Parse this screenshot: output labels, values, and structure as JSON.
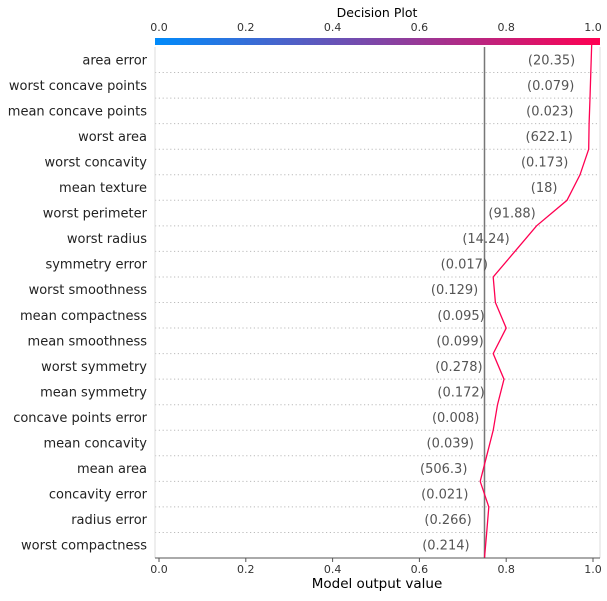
{
  "chart_data": {
    "type": "line",
    "title": "Decision Plot",
    "xlabel": "Model output value",
    "xlim": [
      0.0,
      1.0
    ],
    "xticks": [
      "0.0",
      "0.2",
      "0.4",
      "0.6",
      "0.8",
      "1.0"
    ],
    "base_value": 0.75,
    "colorbar": {
      "range": [
        0.0,
        1.0
      ],
      "colors": [
        "#008bfb",
        "#ff0052"
      ]
    },
    "grid": "dotted horizontal lines per feature",
    "features": [
      "area error",
      "worst concave points",
      "mean concave points",
      "worst area",
      "worst concavity",
      "mean texture",
      "worst perimeter",
      "worst radius",
      "symmetry error",
      "worst smoothness",
      "mean compactness",
      "mean smoothness",
      "worst symmetry",
      "mean symmetry",
      "concave points error",
      "mean concavity",
      "mean area",
      "concavity error",
      "radius error",
      "worst compactness"
    ],
    "feature_values": [
      "(20.35)",
      "(0.079)",
      "(0.023)",
      "(622.1)",
      "(0.173)",
      "(18)",
      "(91.88)",
      "(14.24)",
      "(0.017)",
      "(0.129)",
      "(0.095)",
      "(0.099)",
      "(0.278)",
      "(0.172)",
      "(0.008)",
      "(0.039)",
      "(506.3)",
      "(0.021)",
      "(0.266)",
      "(0.214)"
    ],
    "line_color": "#ff0052",
    "cumulative_values_top_to_bottom": [
      0.997,
      0.995,
      0.993,
      0.991,
      0.99,
      0.97,
      0.94,
      0.87,
      0.82,
      0.77,
      0.775,
      0.8,
      0.77,
      0.795,
      0.78,
      0.77,
      0.755,
      0.74,
      0.76,
      0.755,
      0.75
    ]
  }
}
